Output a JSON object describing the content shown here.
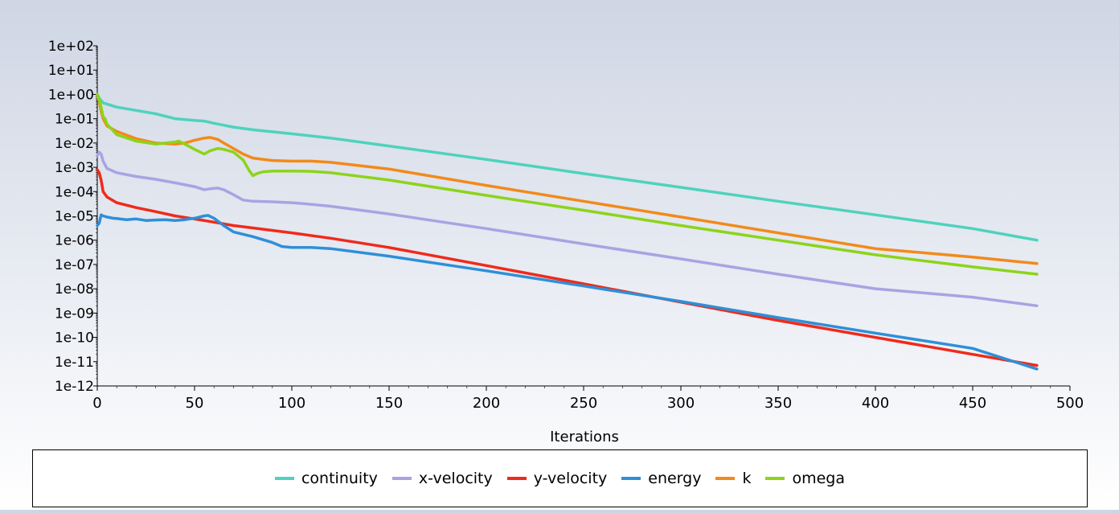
{
  "chart_data": {
    "type": "line",
    "xlabel": "Iterations",
    "ylabel": "",
    "xlim": [
      0,
      500
    ],
    "ylim": [
      1e-12,
      100
    ],
    "y_scale": "log",
    "x_ticks": [
      "0",
      "50",
      "100",
      "150",
      "200",
      "250",
      "300",
      "350",
      "400",
      "450",
      "500"
    ],
    "y_ticks": [
      "1e+02",
      "1e+01",
      "1e+00",
      "1e-01",
      "1e-02",
      "1e-03",
      "1e-04",
      "1e-05",
      "1e-06",
      "1e-07",
      "1e-08",
      "1e-09",
      "1e-10",
      "1e-11",
      "1e-12"
    ],
    "grid": false,
    "legend_position": "bottom",
    "series": [
      {
        "name": "continuity",
        "color": "#4fd2bd",
        "x": [
          0,
          1,
          3,
          10,
          20,
          30,
          40,
          50,
          55,
          60,
          70,
          80,
          100,
          120,
          150,
          200,
          250,
          300,
          350,
          400,
          450,
          483
        ],
        "y": [
          1.0,
          0.7,
          0.45,
          0.3,
          0.22,
          0.16,
          0.1,
          0.085,
          0.08,
          0.065,
          0.045,
          0.035,
          0.024,
          0.016,
          0.0075,
          0.0021,
          0.00055,
          0.00015,
          4e-05,
          1.1e-05,
          3e-06,
          1e-06
        ]
      },
      {
        "name": "x-velocity",
        "color": "#a9a3e3",
        "x": [
          0,
          1,
          2,
          3,
          5,
          10,
          20,
          30,
          40,
          50,
          55,
          58,
          62,
          65,
          70,
          75,
          80,
          90,
          100,
          110,
          120,
          150,
          200,
          250,
          300,
          350,
          400,
          450,
          483
        ],
        "y": [
          0.003,
          0.0042,
          0.0035,
          0.0018,
          0.0009,
          0.0006,
          0.00042,
          0.00032,
          0.00023,
          0.00016,
          0.00012,
          0.00013,
          0.00014,
          0.00012,
          7.5e-05,
          4.5e-05,
          4e-05,
          3.8e-05,
          3.5e-05,
          3e-05,
          2.5e-05,
          1.2e-05,
          3e-06,
          7e-07,
          1.7e-07,
          4e-08,
          1e-08,
          4.5e-09,
          2e-09
        ]
      },
      {
        "name": "y-velocity",
        "color": "#f02a1a",
        "x": [
          0,
          1,
          2,
          3,
          5,
          10,
          20,
          30,
          40,
          50,
          60,
          70,
          80,
          100,
          120,
          150,
          200,
          250,
          300,
          350,
          400,
          450,
          483
        ],
        "y": [
          0.0008,
          0.0006,
          0.0003,
          0.0001,
          6e-05,
          3.5e-05,
          2.2e-05,
          1.5e-05,
          1e-05,
          7.5e-06,
          5.5e-06,
          4e-06,
          3.2e-06,
          2e-06,
          1.2e-06,
          5e-07,
          9e-08,
          1.6e-08,
          2.8e-09,
          5e-10,
          1e-10,
          2e-11,
          7e-12
        ]
      },
      {
        "name": "energy",
        "color": "#2e8fd8",
        "x": [
          0,
          1,
          2,
          3,
          5,
          8,
          10,
          15,
          20,
          25,
          30,
          35,
          40,
          45,
          50,
          55,
          57,
          60,
          65,
          70,
          80,
          90,
          95,
          100,
          110,
          120,
          150,
          200,
          250,
          300,
          350,
          400,
          450,
          483
        ],
        "y": [
          4e-06,
          5e-06,
          1.1e-05,
          1e-05,
          9e-06,
          8e-06,
          7.8e-06,
          7e-06,
          7.5e-06,
          6.5e-06,
          6.8e-06,
          7e-06,
          6.5e-06,
          7e-06,
          8e-06,
          1e-05,
          1.05e-05,
          8e-06,
          4e-06,
          2.2e-06,
          1.4e-06,
          8e-07,
          5.5e-07,
          5e-07,
          5e-07,
          4.5e-07,
          2.2e-07,
          5.5e-08,
          1.3e-08,
          3e-09,
          6.5e-10,
          1.5e-10,
          3.5e-11,
          5e-12
        ]
      },
      {
        "name": "k",
        "color": "#f28a1a",
        "x": [
          0,
          1,
          2,
          3,
          5,
          10,
          20,
          30,
          40,
          45,
          50,
          55,
          58,
          62,
          65,
          70,
          75,
          80,
          90,
          100,
          110,
          120,
          150,
          200,
          250,
          300,
          350,
          400,
          450,
          483
        ],
        "y": [
          1.0,
          0.5,
          0.2,
          0.1,
          0.05,
          0.03,
          0.015,
          0.01,
          0.009,
          0.01,
          0.013,
          0.016,
          0.017,
          0.014,
          0.01,
          0.006,
          0.0035,
          0.0024,
          0.0019,
          0.0018,
          0.0018,
          0.0016,
          0.00085,
          0.00018,
          4e-05,
          9e-06,
          2e-06,
          4.5e-07,
          2e-07,
          1.1e-07
        ]
      },
      {
        "name": "omega",
        "color": "#8cd41a",
        "x": [
          0,
          1,
          2,
          3,
          4,
          5,
          10,
          20,
          30,
          40,
          42,
          45,
          50,
          55,
          58,
          62,
          65,
          70,
          75,
          78,
          80,
          82,
          85,
          90,
          100,
          110,
          120,
          150,
          200,
          250,
          300,
          350,
          400,
          450,
          483
        ],
        "y": [
          1.0,
          0.6,
          0.3,
          0.12,
          0.1,
          0.06,
          0.022,
          0.012,
          0.009,
          0.011,
          0.012,
          0.009,
          0.0055,
          0.0035,
          0.0048,
          0.006,
          0.0055,
          0.0042,
          0.002,
          0.00075,
          0.00045,
          0.00055,
          0.00065,
          0.0007,
          0.0007,
          0.00068,
          0.0006,
          0.0003,
          7e-05,
          1.7e-05,
          4e-06,
          1e-06,
          2.5e-07,
          8e-08,
          4e-08
        ]
      }
    ]
  }
}
